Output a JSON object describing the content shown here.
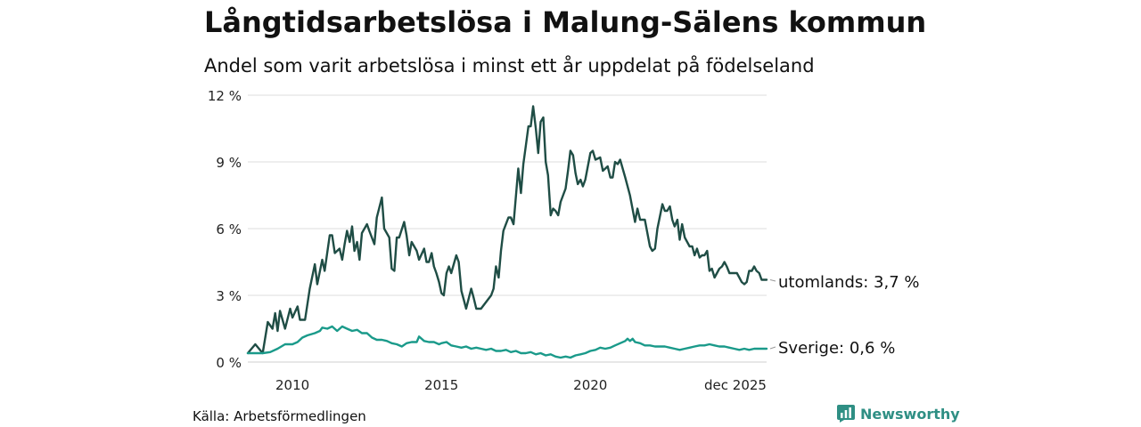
{
  "title": "Långtidsarbetslösa i Malung-Sälens kommun",
  "subtitle": "Andel som varit arbetslösa i minst ett år uppdelat på födelseland",
  "source": "Källa: Arbetsförmedlingen",
  "brand": "Newsworthy",
  "colors": {
    "utomlands": "#1f4d45",
    "sverige": "#1a9a8a",
    "grid": "#dddddd",
    "brand": "#2f8f84"
  },
  "chart_data": {
    "type": "line",
    "title": "Långtidsarbetslösa i Malung-Sälens kommun",
    "xlabel": "",
    "ylabel": "",
    "ylim": [
      0,
      12
    ],
    "xlim": [
      2008.5,
      2025.917
    ],
    "y_ticks": [
      0,
      3,
      6,
      9,
      12
    ],
    "y_tick_labels": [
      "0 %",
      "3 %",
      "6 %",
      "9 %",
      "12 %"
    ],
    "x_ticks": [
      2010,
      2015,
      2020,
      2025.917
    ],
    "x_tick_labels": [
      "2010",
      "2015",
      "2020",
      "dec 2025"
    ],
    "series": [
      {
        "name": "utomlands",
        "end_label": "utomlands: 3,7 %",
        "points": [
          [
            2008.5,
            0.4
          ],
          [
            2008.75,
            0.8
          ],
          [
            2009.0,
            0.4
          ],
          [
            2009.17,
            1.8
          ],
          [
            2009.33,
            1.5
          ],
          [
            2009.42,
            2.2
          ],
          [
            2009.5,
            1.4
          ],
          [
            2009.58,
            2.3
          ],
          [
            2009.75,
            1.5
          ],
          [
            2009.92,
            2.4
          ],
          [
            2010.0,
            2.0
          ],
          [
            2010.17,
            2.5
          ],
          [
            2010.25,
            1.9
          ],
          [
            2010.42,
            1.9
          ],
          [
            2010.58,
            3.3
          ],
          [
            2010.75,
            4.4
          ],
          [
            2010.83,
            3.5
          ],
          [
            2011.0,
            4.6
          ],
          [
            2011.08,
            4.1
          ],
          [
            2011.25,
            5.7
          ],
          [
            2011.33,
            5.7
          ],
          [
            2011.42,
            4.9
          ],
          [
            2011.58,
            5.1
          ],
          [
            2011.67,
            4.6
          ],
          [
            2011.75,
            5.3
          ],
          [
            2011.83,
            5.9
          ],
          [
            2011.92,
            5.4
          ],
          [
            2012.0,
            6.1
          ],
          [
            2012.08,
            5.0
          ],
          [
            2012.17,
            5.4
          ],
          [
            2012.25,
            4.6
          ],
          [
            2012.33,
            5.8
          ],
          [
            2012.5,
            6.2
          ],
          [
            2012.58,
            5.9
          ],
          [
            2012.75,
            5.3
          ],
          [
            2012.83,
            6.5
          ],
          [
            2013.0,
            7.4
          ],
          [
            2013.08,
            6.0
          ],
          [
            2013.25,
            5.6
          ],
          [
            2013.33,
            4.2
          ],
          [
            2013.42,
            4.1
          ],
          [
            2013.5,
            5.6
          ],
          [
            2013.58,
            5.6
          ],
          [
            2013.75,
            6.3
          ],
          [
            2013.83,
            5.7
          ],
          [
            2013.92,
            4.8
          ],
          [
            2014.0,
            5.4
          ],
          [
            2014.17,
            5.0
          ],
          [
            2014.25,
            4.6
          ],
          [
            2014.42,
            5.1
          ],
          [
            2014.5,
            4.5
          ],
          [
            2014.58,
            4.5
          ],
          [
            2014.67,
            4.9
          ],
          [
            2014.75,
            4.3
          ],
          [
            2014.83,
            4.0
          ],
          [
            2014.92,
            3.6
          ],
          [
            2015.0,
            3.1
          ],
          [
            2015.08,
            3.0
          ],
          [
            2015.17,
            4.0
          ],
          [
            2015.25,
            4.3
          ],
          [
            2015.33,
            4.0
          ],
          [
            2015.5,
            4.8
          ],
          [
            2015.58,
            4.5
          ],
          [
            2015.67,
            3.2
          ],
          [
            2015.75,
            2.8
          ],
          [
            2015.83,
            2.4
          ],
          [
            2016.0,
            3.3
          ],
          [
            2016.08,
            2.9
          ],
          [
            2016.17,
            2.4
          ],
          [
            2016.33,
            2.4
          ],
          [
            2016.5,
            2.7
          ],
          [
            2016.67,
            3.0
          ],
          [
            2016.75,
            3.3
          ],
          [
            2016.83,
            4.3
          ],
          [
            2016.92,
            3.8
          ],
          [
            2017.0,
            5.0
          ],
          [
            2017.08,
            5.9
          ],
          [
            2017.25,
            6.5
          ],
          [
            2017.33,
            6.5
          ],
          [
            2017.42,
            6.2
          ],
          [
            2017.58,
            8.7
          ],
          [
            2017.67,
            7.6
          ],
          [
            2017.75,
            8.9
          ],
          [
            2017.83,
            9.7
          ],
          [
            2017.92,
            10.6
          ],
          [
            2018.0,
            10.6
          ],
          [
            2018.08,
            11.5
          ],
          [
            2018.17,
            10.5
          ],
          [
            2018.25,
            9.4
          ],
          [
            2018.33,
            10.8
          ],
          [
            2018.42,
            11.0
          ],
          [
            2018.5,
            9.0
          ],
          [
            2018.58,
            8.4
          ],
          [
            2018.67,
            6.6
          ],
          [
            2018.75,
            6.9
          ],
          [
            2018.83,
            6.8
          ],
          [
            2018.92,
            6.6
          ],
          [
            2019.0,
            7.2
          ],
          [
            2019.17,
            7.8
          ],
          [
            2019.25,
            8.6
          ],
          [
            2019.33,
            9.5
          ],
          [
            2019.42,
            9.3
          ],
          [
            2019.5,
            8.5
          ],
          [
            2019.58,
            8.0
          ],
          [
            2019.67,
            8.2
          ],
          [
            2019.75,
            7.9
          ],
          [
            2019.83,
            8.2
          ],
          [
            2020.0,
            9.4
          ],
          [
            2020.08,
            9.5
          ],
          [
            2020.17,
            9.1
          ],
          [
            2020.33,
            9.2
          ],
          [
            2020.42,
            8.6
          ],
          [
            2020.5,
            8.7
          ],
          [
            2020.58,
            8.8
          ],
          [
            2020.67,
            8.3
          ],
          [
            2020.75,
            8.3
          ],
          [
            2020.83,
            9.0
          ],
          [
            2020.92,
            8.9
          ],
          [
            2021.0,
            9.1
          ],
          [
            2021.17,
            8.3
          ],
          [
            2021.33,
            7.5
          ],
          [
            2021.5,
            6.3
          ],
          [
            2021.58,
            6.9
          ],
          [
            2021.67,
            6.4
          ],
          [
            2021.75,
            6.4
          ],
          [
            2021.83,
            6.4
          ],
          [
            2022.0,
            5.2
          ],
          [
            2022.08,
            5.0
          ],
          [
            2022.17,
            5.1
          ],
          [
            2022.25,
            6.0
          ],
          [
            2022.42,
            7.1
          ],
          [
            2022.5,
            6.8
          ],
          [
            2022.58,
            6.8
          ],
          [
            2022.67,
            7.0
          ],
          [
            2022.75,
            6.4
          ],
          [
            2022.83,
            6.1
          ],
          [
            2022.92,
            6.4
          ],
          [
            2023.0,
            5.5
          ],
          [
            2023.08,
            6.2
          ],
          [
            2023.17,
            5.6
          ],
          [
            2023.25,
            5.4
          ],
          [
            2023.33,
            5.2
          ],
          [
            2023.42,
            5.2
          ],
          [
            2023.5,
            4.8
          ],
          [
            2023.58,
            5.1
          ],
          [
            2023.67,
            4.7
          ],
          [
            2023.75,
            4.8
          ],
          [
            2023.83,
            4.8
          ],
          [
            2023.92,
            5.0
          ],
          [
            2024.0,
            4.1
          ],
          [
            2024.08,
            4.2
          ],
          [
            2024.17,
            3.8
          ],
          [
            2024.25,
            4.0
          ],
          [
            2024.33,
            4.2
          ],
          [
            2024.42,
            4.3
          ],
          [
            2024.5,
            4.5
          ],
          [
            2024.58,
            4.3
          ],
          [
            2024.67,
            4.0
          ],
          [
            2024.75,
            4.0
          ],
          [
            2024.92,
            4.0
          ],
          [
            2025.0,
            3.8
          ],
          [
            2025.08,
            3.6
          ],
          [
            2025.17,
            3.5
          ],
          [
            2025.25,
            3.6
          ],
          [
            2025.33,
            4.1
          ],
          [
            2025.42,
            4.1
          ],
          [
            2025.5,
            4.3
          ],
          [
            2025.58,
            4.1
          ],
          [
            2025.67,
            4.0
          ],
          [
            2025.75,
            3.7
          ],
          [
            2025.917,
            3.7
          ]
        ]
      },
      {
        "name": "Sverige",
        "end_label": "Sverige: 0,6 %",
        "points": [
          [
            2008.5,
            0.4
          ],
          [
            2008.75,
            0.4
          ],
          [
            2009.0,
            0.4
          ],
          [
            2009.25,
            0.45
          ],
          [
            2009.5,
            0.6
          ],
          [
            2009.75,
            0.8
          ],
          [
            2010.0,
            0.8
          ],
          [
            2010.17,
            0.9
          ],
          [
            2010.33,
            1.1
          ],
          [
            2010.5,
            1.2
          ],
          [
            2010.75,
            1.3
          ],
          [
            2010.92,
            1.4
          ],
          [
            2011.0,
            1.55
          ],
          [
            2011.17,
            1.5
          ],
          [
            2011.33,
            1.6
          ],
          [
            2011.5,
            1.4
          ],
          [
            2011.67,
            1.6
          ],
          [
            2011.83,
            1.5
          ],
          [
            2012.0,
            1.4
          ],
          [
            2012.17,
            1.45
          ],
          [
            2012.33,
            1.3
          ],
          [
            2012.5,
            1.3
          ],
          [
            2012.67,
            1.1
          ],
          [
            2012.83,
            1.0
          ],
          [
            2013.0,
            1.0
          ],
          [
            2013.17,
            0.95
          ],
          [
            2013.33,
            0.85
          ],
          [
            2013.5,
            0.8
          ],
          [
            2013.67,
            0.7
          ],
          [
            2013.83,
            0.85
          ],
          [
            2014.0,
            0.9
          ],
          [
            2014.17,
            0.9
          ],
          [
            2014.25,
            1.15
          ],
          [
            2014.42,
            0.95
          ],
          [
            2014.58,
            0.9
          ],
          [
            2014.75,
            0.9
          ],
          [
            2014.92,
            0.8
          ],
          [
            2015.0,
            0.85
          ],
          [
            2015.17,
            0.9
          ],
          [
            2015.33,
            0.75
          ],
          [
            2015.5,
            0.7
          ],
          [
            2015.67,
            0.65
          ],
          [
            2015.83,
            0.7
          ],
          [
            2016.0,
            0.6
          ],
          [
            2016.17,
            0.65
          ],
          [
            2016.33,
            0.6
          ],
          [
            2016.5,
            0.55
          ],
          [
            2016.67,
            0.6
          ],
          [
            2016.83,
            0.5
          ],
          [
            2017.0,
            0.5
          ],
          [
            2017.17,
            0.55
          ],
          [
            2017.33,
            0.45
          ],
          [
            2017.5,
            0.5
          ],
          [
            2017.67,
            0.4
          ],
          [
            2017.83,
            0.4
          ],
          [
            2018.0,
            0.45
          ],
          [
            2018.17,
            0.35
          ],
          [
            2018.33,
            0.4
          ],
          [
            2018.5,
            0.3
          ],
          [
            2018.67,
            0.35
          ],
          [
            2018.83,
            0.25
          ],
          [
            2019.0,
            0.2
          ],
          [
            2019.17,
            0.25
          ],
          [
            2019.33,
            0.2
          ],
          [
            2019.5,
            0.3
          ],
          [
            2019.67,
            0.35
          ],
          [
            2019.83,
            0.4
          ],
          [
            2020.0,
            0.5
          ],
          [
            2020.17,
            0.55
          ],
          [
            2020.33,
            0.65
          ],
          [
            2020.5,
            0.6
          ],
          [
            2020.67,
            0.65
          ],
          [
            2020.83,
            0.75
          ],
          [
            2021.0,
            0.85
          ],
          [
            2021.17,
            0.95
          ],
          [
            2021.25,
            1.05
          ],
          [
            2021.33,
            0.95
          ],
          [
            2021.42,
            1.05
          ],
          [
            2021.5,
            0.9
          ],
          [
            2021.67,
            0.85
          ],
          [
            2021.83,
            0.75
          ],
          [
            2022.0,
            0.75
          ],
          [
            2022.17,
            0.7
          ],
          [
            2022.33,
            0.7
          ],
          [
            2022.5,
            0.7
          ],
          [
            2022.67,
            0.65
          ],
          [
            2022.83,
            0.6
          ],
          [
            2023.0,
            0.55
          ],
          [
            2023.17,
            0.6
          ],
          [
            2023.33,
            0.65
          ],
          [
            2023.5,
            0.7
          ],
          [
            2023.67,
            0.75
          ],
          [
            2023.83,
            0.75
          ],
          [
            2024.0,
            0.8
          ],
          [
            2024.17,
            0.75
          ],
          [
            2024.33,
            0.7
          ],
          [
            2024.5,
            0.7
          ],
          [
            2024.67,
            0.65
          ],
          [
            2024.83,
            0.6
          ],
          [
            2025.0,
            0.55
          ],
          [
            2025.17,
            0.6
          ],
          [
            2025.33,
            0.55
          ],
          [
            2025.5,
            0.6
          ],
          [
            2025.67,
            0.6
          ],
          [
            2025.917,
            0.6
          ]
        ]
      }
    ]
  }
}
